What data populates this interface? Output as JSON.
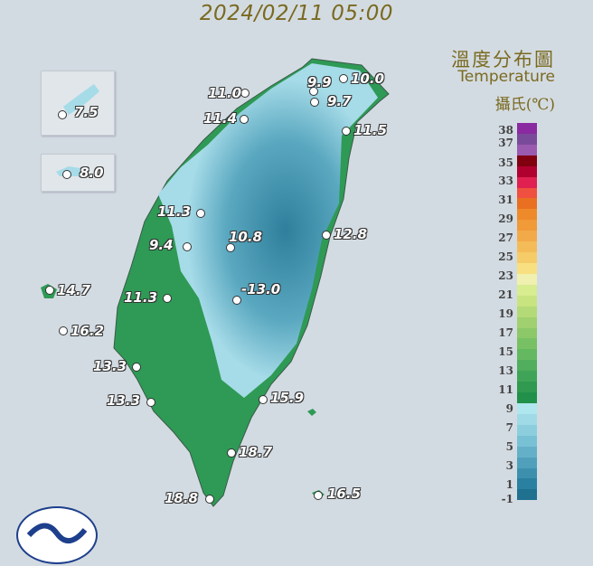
{
  "title": "2024/02/11 05:00",
  "legend": {
    "title_zh": "溫度分布圖",
    "title_en": "Temperature",
    "unit": "攝氏(℃)",
    "ticks": [
      "38",
      "37",
      "35",
      "33",
      "31",
      "29",
      "27",
      "25",
      "23",
      "21",
      "19",
      "17",
      "15",
      "13",
      "11",
      "9",
      "7",
      "5",
      "3",
      "1",
      "-1"
    ],
    "colors": [
      "#8a2aa0",
      "#7a4a9a",
      "#9a5ab0",
      "#800010",
      "#b00030",
      "#e02050",
      "#f05040",
      "#e87020",
      "#ee8a2a",
      "#f09a38",
      "#f2aa48",
      "#f4bc58",
      "#f6cc68",
      "#f8e080",
      "#f0f0b0",
      "#d8ec90",
      "#c8e480",
      "#b4da78",
      "#a0d070",
      "#8cc868",
      "#78c064",
      "#64b860",
      "#50ae5c",
      "#40a458",
      "#309a50",
      "#20904a",
      "#b0e6ee",
      "#a0dae6",
      "#8ccede",
      "#78c0d4",
      "#64b0c8",
      "#50a0bc",
      "#3c90ae",
      "#2a80a0",
      "#207090"
    ]
  },
  "stations": [
    {
      "value": "10.0"
    },
    {
      "value": "9.9"
    },
    {
      "value": "9.7"
    },
    {
      "value": "11.0"
    },
    {
      "value": "11.4"
    },
    {
      "value": "11.5"
    },
    {
      "value": "11.3"
    },
    {
      "value": "9.4"
    },
    {
      "value": "10.8"
    },
    {
      "value": "12.8"
    },
    {
      "value": "-13.0"
    },
    {
      "value": "11.3"
    },
    {
      "value": "13.3"
    },
    {
      "value": "13.3"
    },
    {
      "value": "15.9"
    },
    {
      "value": "18.7"
    },
    {
      "value": "18.8"
    },
    {
      "value": "16.5"
    },
    {
      "value": "7.5"
    },
    {
      "value": "8.0"
    },
    {
      "value": "14.7"
    },
    {
      "value": "16.2"
    }
  ],
  "colors": {
    "lowland": "#2e9a55",
    "mountain": "#3a8aa8",
    "plain_cold": "#a6dbe8"
  }
}
